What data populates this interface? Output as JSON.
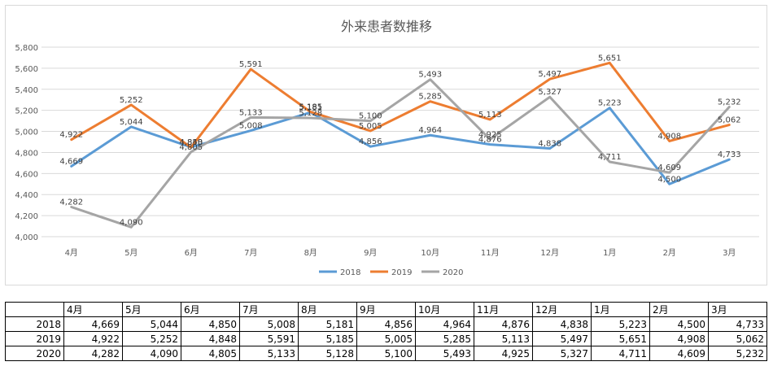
{
  "chart_data": {
    "type": "line",
    "title": "外来患者数推移",
    "categories": [
      "4月",
      "5月",
      "6月",
      "7月",
      "8月",
      "9月",
      "10月",
      "11月",
      "12月",
      "1月",
      "2月",
      "3月"
    ],
    "ylim": [
      4000,
      5800
    ],
    "yticks": [
      "4,000",
      "4,200",
      "4,400",
      "4,600",
      "4,800",
      "5,000",
      "5,200",
      "5,400",
      "5,600",
      "5,800"
    ],
    "grid": true,
    "legend": "bottom",
    "series": [
      {
        "name": "2018",
        "color": "#5b9bd5",
        "values": [
          4669,
          5044,
          4850,
          5008,
          5181,
          4856,
          4964,
          4876,
          4838,
          5223,
          4500,
          4733
        ],
        "labels": [
          "4,669",
          "5,044",
          "4,850",
          "5,008",
          "5,181",
          "4,856",
          "4,964",
          "4,876",
          "4,838",
          "5,223",
          "4,500",
          "4,733"
        ]
      },
      {
        "name": "2019",
        "color": "#ed7d31",
        "values": [
          4922,
          5252,
          4848,
          5591,
          5185,
          5005,
          5285,
          5113,
          5497,
          5651,
          4908,
          5062
        ],
        "labels": [
          "4,922",
          "5,252",
          "4,848",
          "5,591",
          "5,185",
          "5,005",
          "5,285",
          "5,113",
          "5,497",
          "5,651",
          "4,908",
          "5,062"
        ]
      },
      {
        "name": "2020",
        "color": "#a5a5a5",
        "values": [
          4282,
          4090,
          4805,
          5133,
          5128,
          5100,
          5493,
          4925,
          5327,
          4711,
          4609,
          5232
        ],
        "labels": [
          "4,282",
          "4,090",
          "4,805",
          "5,133",
          "5,128",
          "5,100",
          "5,493",
          "4,925",
          "5,327",
          "4,711",
          "4,609",
          "5,232"
        ]
      }
    ]
  },
  "table": {
    "header": [
      "4月",
      "5月",
      "6月",
      "7月",
      "8月",
      "9月",
      "10月",
      "11月",
      "12月",
      "1月",
      "2月",
      "3月"
    ],
    "rows": [
      {
        "label": "2018",
        "cells": [
          "4,669",
          "5,044",
          "4,850",
          "5,008",
          "5,181",
          "4,856",
          "4,964",
          "4,876",
          "4,838",
          "5,223",
          "4,500",
          "4,733"
        ]
      },
      {
        "label": "2019",
        "cells": [
          "4,922",
          "5,252",
          "4,848",
          "5,591",
          "5,185",
          "5,005",
          "5,285",
          "5,113",
          "5,497",
          "5,651",
          "4,908",
          "5,062"
        ]
      },
      {
        "label": "2020",
        "cells": [
          "4,282",
          "4,090",
          "4,805",
          "5,133",
          "5,128",
          "5,100",
          "5,493",
          "4,925",
          "5,327",
          "4,711",
          "4,609",
          "5,232"
        ]
      }
    ]
  }
}
